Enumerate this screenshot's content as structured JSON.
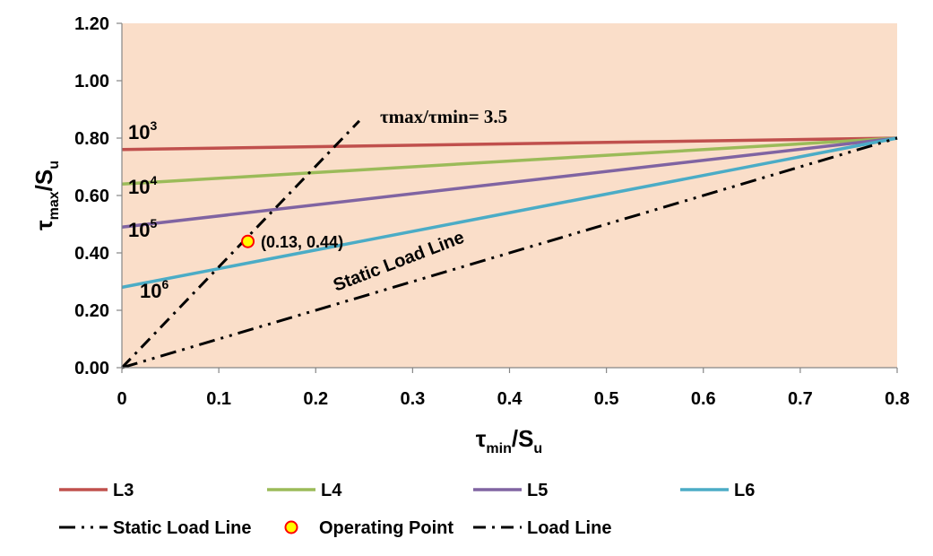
{
  "chart_data": {
    "type": "line",
    "xlim": [
      0,
      0.8
    ],
    "ylim": [
      0,
      1.2
    ],
    "x_ticks": [
      "0",
      "0.1",
      "0.2",
      "0.3",
      "0.4",
      "0.5",
      "0.6",
      "0.7",
      "0.8"
    ],
    "y_ticks": [
      "0.00",
      "0.20",
      "0.40",
      "0.60",
      "0.80",
      "1.00",
      "1.20"
    ],
    "x_tick_values": [
      0,
      0.1,
      0.2,
      0.3,
      0.4,
      0.5,
      0.6,
      0.7,
      0.8
    ],
    "y_tick_values": [
      0,
      0.2,
      0.4,
      0.6,
      0.8,
      1.0,
      1.2
    ],
    "xlabel": {
      "main": "τ",
      "sub": "min",
      "after": "/S",
      "sub2": "u"
    },
    "ylabel": {
      "main": "τ",
      "sub": "max",
      "after": "/S",
      "sub2": "u"
    },
    "grid": false,
    "plot_background": "#FADEC9",
    "legend_position": "bottom",
    "series": [
      {
        "name": "L3",
        "x": [
          0,
          0.8
        ],
        "y": [
          0.76,
          0.8
        ],
        "color": "#C0504D",
        "style": "solid"
      },
      {
        "name": "L4",
        "x": [
          0,
          0.8
        ],
        "y": [
          0.64,
          0.8
        ],
        "color": "#9BBB59",
        "style": "solid"
      },
      {
        "name": "L5",
        "x": [
          0,
          0.8
        ],
        "y": [
          0.49,
          0.8
        ],
        "color": "#8064A2",
        "style": "solid"
      },
      {
        "name": "L6",
        "x": [
          0,
          0.8
        ],
        "y": [
          0.28,
          0.8
        ],
        "color": "#4BACC6",
        "style": "solid"
      },
      {
        "name": "Static Load Line",
        "x": [
          0,
          0.8
        ],
        "y": [
          0,
          0.8
        ],
        "color": "#000000",
        "style": "dash-dot-dot"
      },
      {
        "name": "Operating Point",
        "x": [
          0.13
        ],
        "y": [
          0.44
        ],
        "color": "#FFFF00",
        "edge": "#FF0000",
        "style": "marker"
      },
      {
        "name": "Load Line",
        "x": [
          0,
          0.245
        ],
        "y": [
          0,
          0.86
        ],
        "color": "#000000",
        "style": "dash-dot"
      }
    ],
    "annotations": {
      "cycles": [
        {
          "base": "10",
          "exp": "3"
        },
        {
          "base": "10",
          "exp": "4"
        },
        {
          "base": "10",
          "exp": "5"
        },
        {
          "base": "10",
          "exp": "6"
        }
      ],
      "operating_point_label": "(0.13, 0.44)",
      "static_load_line_label": "Static Load Line",
      "ratio_label": "τmax/τmin= 3.5"
    }
  }
}
